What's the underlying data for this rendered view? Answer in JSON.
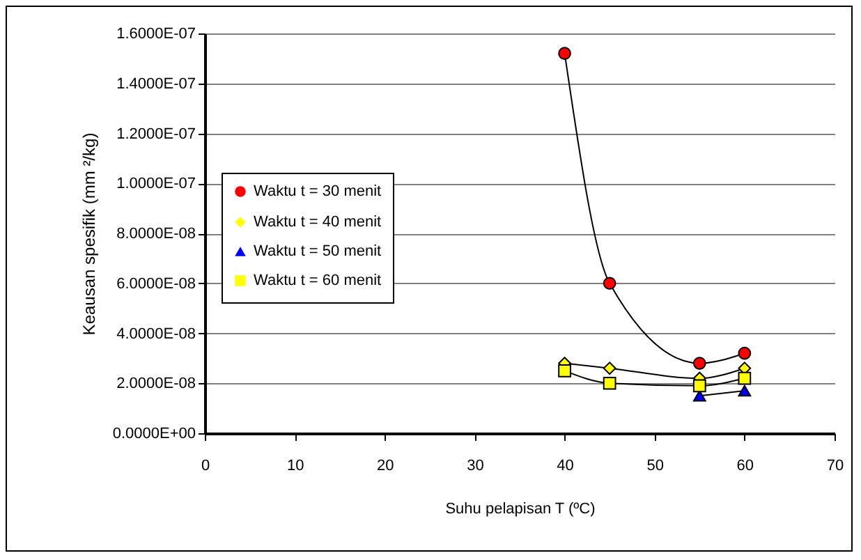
{
  "chart_data": {
    "type": "line",
    "xlabel": "Suhu pelapisan T (ºC)",
    "ylabel": "Keausan spesifik (mm ²/kg)",
    "x": [
      40,
      45,
      55,
      60
    ],
    "series": [
      {
        "name": "Waktu t = 30 menit",
        "color": "#ff0000",
        "marker": "circle",
        "values": [
          1.52e-07,
          6e-08,
          2.8e-08,
          3.2e-08
        ]
      },
      {
        "name": "Waktu t = 40 menit",
        "color": "#ffff00",
        "marker": "diamond",
        "values": [
          2.8e-08,
          2.6e-08,
          2.2e-08,
          2.6e-08
        ]
      },
      {
        "name": "Waktu t = 50 menit",
        "color": "#0000ff",
        "marker": "triangle",
        "values": [
          null,
          null,
          1.5e-08,
          1.7e-08
        ]
      },
      {
        "name": "Waktu t = 60 menit",
        "color": "#ffff00",
        "marker": "square",
        "values": [
          2.5e-08,
          2e-08,
          1.9e-08,
          2.2e-08
        ]
      }
    ],
    "xlim": [
      0,
      70
    ],
    "xticks": [
      0,
      10,
      20,
      30,
      40,
      50,
      60,
      70
    ],
    "ylim": [
      0,
      1.6e-07
    ],
    "yticks": [
      {
        "value": 0,
        "label": "0.0000E+00"
      },
      {
        "value": 2e-08,
        "label": "2.0000E-08"
      },
      {
        "value": 4e-08,
        "label": "4.0000E-08"
      },
      {
        "value": 6e-08,
        "label": "6.0000E-08"
      },
      {
        "value": 8e-08,
        "label": "8.0000E-08"
      },
      {
        "value": 1e-07,
        "label": "1.0000E-07"
      },
      {
        "value": 1.2e-07,
        "label": "1.2000E-07"
      },
      {
        "value": 1.4e-07,
        "label": "1.4000E-07"
      },
      {
        "value": 1.6e-07,
        "label": "1.6000E-07"
      }
    ],
    "grid": "y",
    "legend": "left",
    "line_style": "solid"
  }
}
